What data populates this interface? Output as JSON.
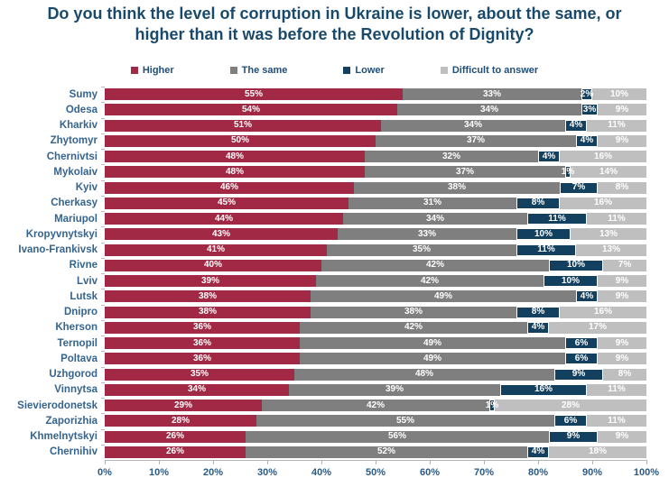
{
  "chart_data": {
    "type": "bar",
    "orientation": "horizontal_stacked",
    "title": "Do you think the level of corruption in Ukraine is lower, about the same, or higher than it was before the Revolution of Dignity?",
    "legend_position": "top",
    "value_suffix": "%",
    "x_axis": {
      "min": 0,
      "max": 100,
      "tick_step": 10,
      "tick_labels": [
        "0%",
        "10%",
        "20%",
        "30%",
        "40%",
        "50%",
        "60%",
        "70%",
        "80%",
        "90%",
        "100%"
      ]
    },
    "categories": [
      "Sumy",
      "Odesa",
      "Kharkiv",
      "Zhytomyr",
      "Chernivtsi",
      "Mykolaiv",
      "Kyiv",
      "Cherkasy",
      "Mariupol",
      "Kropyvnytskyi",
      "Ivano-Frankivsk",
      "Rivne",
      "Lviv",
      "Lutsk",
      "Dnipro",
      "Kherson",
      "Ternopil",
      "Poltava",
      "Uzhgorod",
      "Vinnytsa",
      "Sievierodonetsk",
      "Zaporizhia",
      "Khmelnytskyi",
      "Chernihiv"
    ],
    "series": [
      {
        "name": "Higher",
        "color": "#A22945",
        "values": [
          55,
          54,
          51,
          50,
          48,
          48,
          46,
          45,
          44,
          43,
          41,
          40,
          39,
          38,
          38,
          36,
          36,
          36,
          35,
          34,
          29,
          28,
          26,
          26
        ]
      },
      {
        "name": "The same",
        "color": "#7F7F7F",
        "values": [
          33,
          34,
          34,
          37,
          32,
          37,
          38,
          31,
          34,
          33,
          35,
          42,
          42,
          49,
          38,
          42,
          49,
          49,
          48,
          39,
          42,
          55,
          56,
          52
        ]
      },
      {
        "name": "Lower",
        "color": "#14405F",
        "outline": "#FFFFFF",
        "values": [
          2,
          3,
          4,
          4,
          4,
          1,
          7,
          8,
          11,
          10,
          11,
          10,
          10,
          4,
          8,
          4,
          6,
          6,
          9,
          16,
          1,
          6,
          9,
          4
        ]
      },
      {
        "name": "Difficult to answer",
        "color": "#BFBFBF",
        "values": [
          10,
          9,
          11,
          9,
          16,
          14,
          8,
          16,
          11,
          13,
          13,
          7,
          9,
          9,
          16,
          17,
          9,
          9,
          8,
          11,
          28,
          11,
          9,
          18
        ]
      }
    ],
    "colors": {
      "title_text": "#1A4A6B",
      "legend_text": "#1F4E79",
      "category_label_text": "#35648F",
      "axis_label_text": "#2A5A85",
      "axis_line": "#B3B3B3",
      "value_label_text": "#FFFFFF"
    }
  }
}
